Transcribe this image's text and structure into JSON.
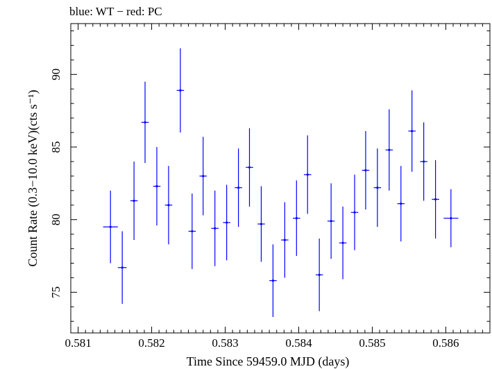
{
  "chart_data": {
    "type": "scatter",
    "title": "blue: WT − red: PC",
    "xlabel": "Time Since 59459.0 MJD (days)",
    "ylabel": "Count Rate (0.3−10.0 keV)(cts s⁻¹)",
    "xlim": [
      0.5809,
      0.5866
    ],
    "ylim": [
      72.2,
      93.5
    ],
    "xticks": [
      0.581,
      0.582,
      0.583,
      0.584,
      0.585,
      0.586
    ],
    "xtick_labels": [
      "0.581",
      "0.582",
      "0.583",
      "0.584",
      "0.585",
      "0.586"
    ],
    "yticks": [
      75,
      80,
      85,
      90
    ],
    "ytick_labels": [
      "75",
      "80",
      "85",
      "90"
    ],
    "grid": false,
    "series": [
      {
        "color": "#0000ff",
        "points": [
          {
            "x": 0.58144,
            "xerr": 0.0001,
            "y": 79.5,
            "yerr": 2.5
          },
          {
            "x": 0.5816,
            "xerr": 6e-05,
            "y": 76.7,
            "yerr": 2.5
          },
          {
            "x": 0.58176,
            "xerr": 5e-05,
            "y": 81.3,
            "yerr": 2.7
          },
          {
            "x": 0.58191,
            "xerr": 5e-05,
            "y": 86.7,
            "yerr": 2.8
          },
          {
            "x": 0.58207,
            "xerr": 5e-05,
            "y": 82.3,
            "yerr": 2.7
          },
          {
            "x": 0.58223,
            "xerr": 5e-05,
            "y": 81.0,
            "yerr": 2.7
          },
          {
            "x": 0.58239,
            "xerr": 5e-05,
            "y": 88.9,
            "yerr": 2.9
          },
          {
            "x": 0.58255,
            "xerr": 5e-05,
            "y": 79.2,
            "yerr": 2.6
          },
          {
            "x": 0.5827,
            "xerr": 5e-05,
            "y": 83.0,
            "yerr": 2.7
          },
          {
            "x": 0.58286,
            "xerr": 5e-05,
            "y": 79.4,
            "yerr": 2.6
          },
          {
            "x": 0.58302,
            "xerr": 5e-05,
            "y": 79.8,
            "yerr": 2.6
          },
          {
            "x": 0.58318,
            "xerr": 5e-05,
            "y": 82.2,
            "yerr": 2.7
          },
          {
            "x": 0.58333,
            "xerr": 5e-05,
            "y": 83.6,
            "yerr": 2.7
          },
          {
            "x": 0.58349,
            "xerr": 5e-05,
            "y": 79.7,
            "yerr": 2.6
          },
          {
            "x": 0.58365,
            "xerr": 5e-05,
            "y": 75.8,
            "yerr": 2.5
          },
          {
            "x": 0.58381,
            "xerr": 5e-05,
            "y": 78.6,
            "yerr": 2.6
          },
          {
            "x": 0.58397,
            "xerr": 5e-05,
            "y": 80.1,
            "yerr": 2.6
          },
          {
            "x": 0.58412,
            "xerr": 5e-05,
            "y": 83.1,
            "yerr": 2.7
          },
          {
            "x": 0.58428,
            "xerr": 5e-05,
            "y": 76.2,
            "yerr": 2.5
          },
          {
            "x": 0.58444,
            "xerr": 5e-05,
            "y": 79.9,
            "yerr": 2.6
          },
          {
            "x": 0.5846,
            "xerr": 5e-05,
            "y": 78.4,
            "yerr": 2.5
          },
          {
            "x": 0.58476,
            "xerr": 5e-05,
            "y": 80.5,
            "yerr": 2.6
          },
          {
            "x": 0.58491,
            "xerr": 5e-05,
            "y": 83.4,
            "yerr": 2.7
          },
          {
            "x": 0.58507,
            "xerr": 5e-05,
            "y": 82.2,
            "yerr": 2.7
          },
          {
            "x": 0.58523,
            "xerr": 5e-05,
            "y": 84.8,
            "yerr": 2.8
          },
          {
            "x": 0.58539,
            "xerr": 5e-05,
            "y": 81.1,
            "yerr": 2.6
          },
          {
            "x": 0.58554,
            "xerr": 5e-05,
            "y": 86.1,
            "yerr": 2.8
          },
          {
            "x": 0.5857,
            "xerr": 5e-05,
            "y": 84.0,
            "yerr": 2.7
          },
          {
            "x": 0.58586,
            "xerr": 5e-05,
            "y": 81.4,
            "yerr": 2.7
          },
          {
            "x": 0.58607,
            "xerr": 0.0001,
            "y": 80.1,
            "yerr": 2.0
          }
        ]
      }
    ]
  }
}
